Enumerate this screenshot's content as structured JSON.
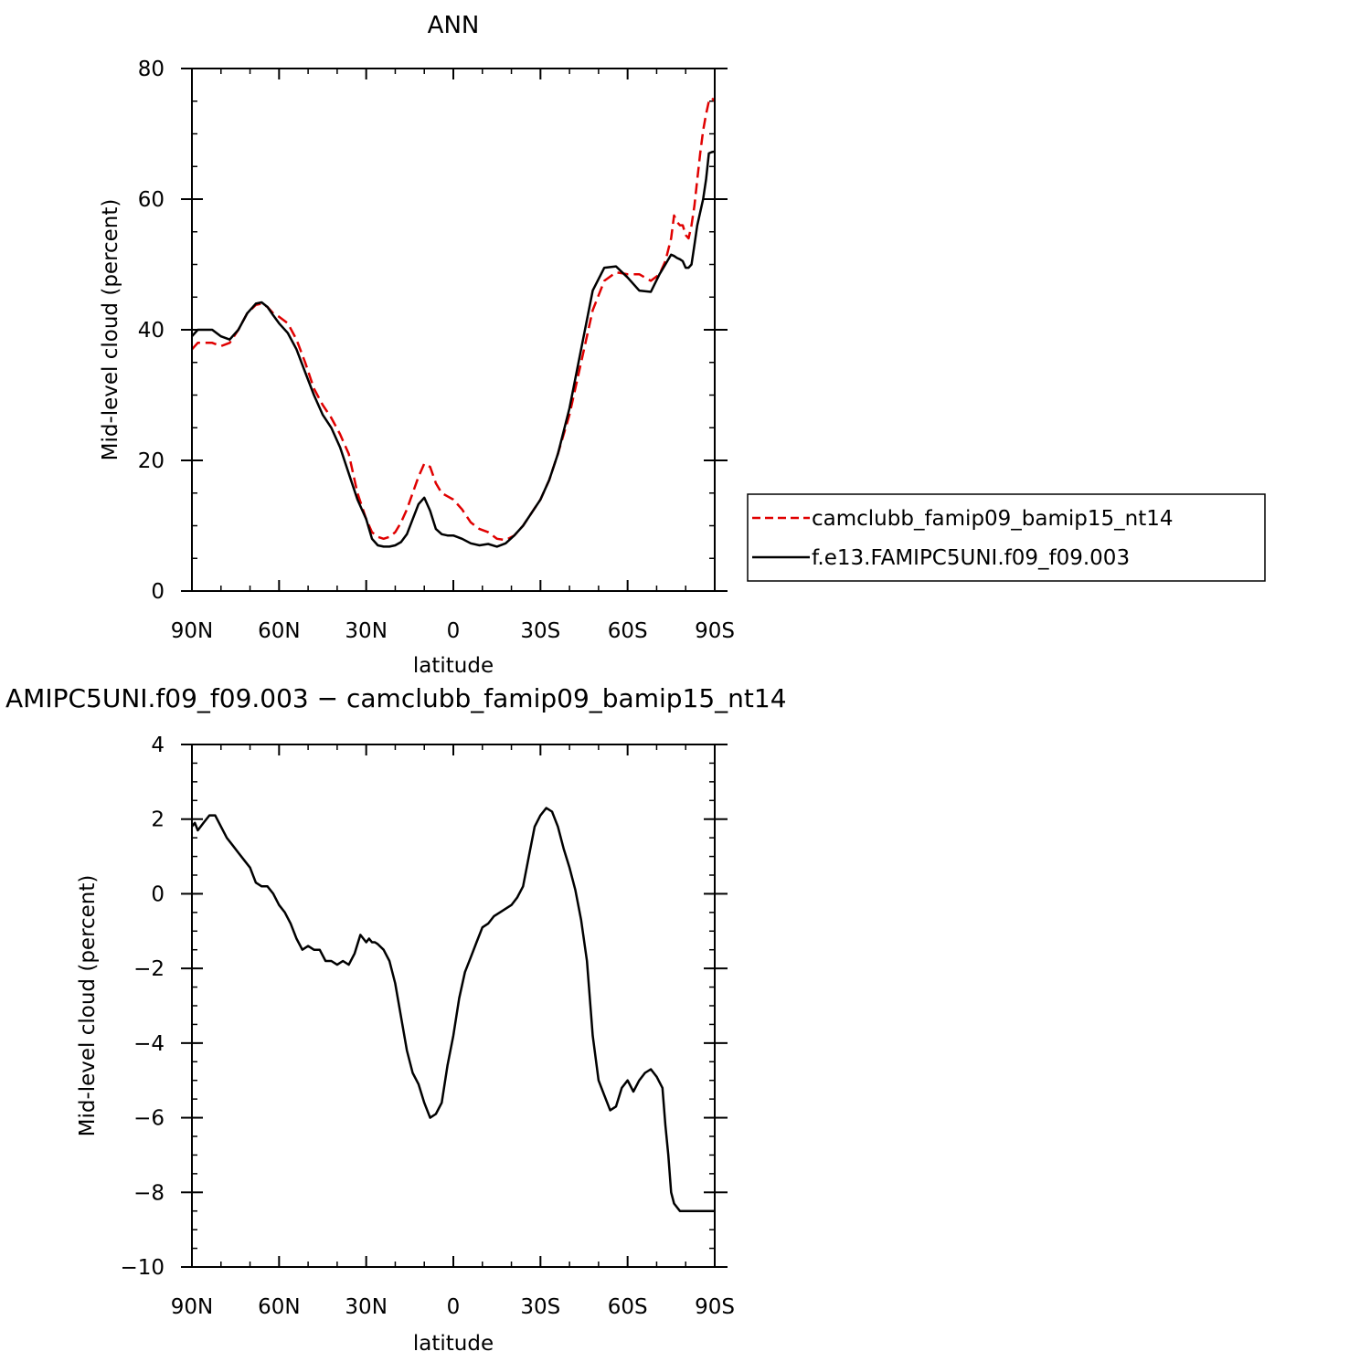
{
  "chart_data": [
    {
      "type": "line",
      "title": "ANN",
      "xlabel": "latitude",
      "ylabel": "Mid-level cloud (percent)",
      "xlim": [
        -90,
        90
      ],
      "ylim": [
        0,
        80
      ],
      "x_tick_values": [
        -90,
        -60,
        -30,
        0,
        30,
        60,
        90
      ],
      "x_tick_labels": [
        "90N",
        "60N",
        "30N",
        "0",
        "30S",
        "60S",
        "90S"
      ],
      "y_ticks": [
        0,
        20,
        40,
        60,
        80
      ],
      "legend": {
        "placement": "right",
        "entries": [
          {
            "label": "camclubb_famip09_bamip15_nt14",
            "color": "#e00000",
            "dash": "dashed"
          },
          {
            "label": "f.e13.FAMIPC5UNI.f09_f09.003",
            "color": "#000000",
            "dash": "solid"
          }
        ]
      },
      "series": [
        {
          "name": "camclubb_famip09_bamip15_nt14",
          "color": "#e00000",
          "dash": "dashed",
          "x": [
            -90,
            -88,
            -86,
            -83,
            -80,
            -77,
            -74,
            -71,
            -68,
            -66,
            -64,
            -62,
            -60,
            -57,
            -54,
            -51,
            -48,
            -45,
            -42,
            -39,
            -36,
            -33,
            -30,
            -28,
            -26,
            -24,
            -22,
            -20,
            -18,
            -16,
            -14,
            -12,
            -10,
            -8,
            -6,
            -4,
            -2,
            0,
            3,
            6,
            9,
            12,
            15,
            18,
            21,
            24,
            27,
            30,
            33,
            36,
            40,
            44,
            48,
            52,
            56,
            60,
            64,
            68,
            71,
            73,
            75,
            76,
            77,
            78,
            79,
            80,
            81,
            82,
            83,
            84,
            85,
            86,
            87,
            88,
            89,
            90
          ],
          "y": [
            37,
            38,
            38,
            38,
            37.5,
            38,
            40,
            42.5,
            43.8,
            44,
            43.5,
            42.5,
            42,
            41,
            38.5,
            35,
            31,
            28.5,
            26.5,
            24,
            21,
            15,
            11,
            9,
            8.3,
            8,
            8.3,
            9,
            10.5,
            12.5,
            15,
            17.5,
            19.5,
            19,
            16.5,
            15,
            14.5,
            14,
            12.5,
            10.5,
            9.5,
            9,
            8,
            7.8,
            8.5,
            10,
            12,
            14,
            17,
            21,
            27,
            35,
            43,
            47.5,
            48.8,
            48.5,
            48.5,
            47.5,
            48.5,
            50.5,
            54,
            57.5,
            56.5,
            56,
            56,
            54.5,
            54,
            56,
            59,
            63,
            67,
            70.5,
            73,
            75,
            75.5,
            75
          ]
        },
        {
          "name": "f.e13.FAMIPC5UNI.f09_f09.003",
          "color": "#000000",
          "dash": "solid",
          "x": [
            -90,
            -88,
            -86,
            -83,
            -80,
            -77,
            -74,
            -71,
            -68,
            -66,
            -64,
            -62,
            -60,
            -57,
            -54,
            -51,
            -48,
            -45,
            -42,
            -39,
            -36,
            -33,
            -30,
            -28,
            -26,
            -24,
            -22,
            -20,
            -18,
            -16,
            -14,
            -12,
            -10,
            -8,
            -6,
            -4,
            -2,
            0,
            3,
            6,
            9,
            12,
            15,
            18,
            21,
            24,
            27,
            30,
            33,
            36,
            40,
            44,
            48,
            52,
            56,
            60,
            64,
            68,
            71,
            73,
            75,
            76,
            77,
            78,
            79,
            80,
            81,
            82,
            83,
            84,
            85,
            86,
            87,
            88,
            89,
            90
          ],
          "y": [
            39,
            40,
            40,
            40,
            39,
            38.5,
            40,
            42.5,
            44,
            44.2,
            43.5,
            42.2,
            41,
            39.5,
            37,
            33.5,
            30,
            27,
            25,
            22,
            18,
            14,
            11,
            8,
            7,
            6.8,
            6.8,
            7,
            7.5,
            8.7,
            11,
            13.3,
            14.3,
            12.3,
            9.5,
            8.7,
            8.5,
            8.5,
            8,
            7.3,
            7,
            7.2,
            6.8,
            7.3,
            8.5,
            10,
            12,
            14,
            17,
            21,
            28,
            37,
            46,
            49.5,
            49.7,
            48,
            46,
            45.8,
            48.5,
            50,
            51.5,
            51.3,
            51,
            50.8,
            50.5,
            49.5,
            49.5,
            50,
            53,
            56,
            58,
            60,
            63,
            67,
            67.2,
            67.3
          ]
        }
      ]
    },
    {
      "type": "line",
      "title": "AMIPC5UNI.f09_f09.003 − camclubb_famip09_bamip15_nt14",
      "xlabel": "latitude",
      "ylabel": "Mid-level cloud (percent)",
      "xlim": [
        -90,
        90
      ],
      "ylim": [
        -10,
        4
      ],
      "x_tick_values": [
        -90,
        -60,
        -30,
        0,
        30,
        60,
        90
      ],
      "x_tick_labels": [
        "90N",
        "60N",
        "30N",
        "0",
        "30S",
        "60S",
        "90S"
      ],
      "y_ticks": [
        -10,
        -8,
        -6,
        -4,
        -2,
        0,
        2,
        4
      ],
      "series": [
        {
          "color": "#000000",
          "dash": "solid",
          "x": [
            -90,
            -89,
            -88,
            -86,
            -84,
            -82,
            -80,
            -78,
            -76,
            -74,
            -72,
            -70,
            -68,
            -66,
            -64,
            -62,
            -60,
            -58,
            -56,
            -54,
            -52,
            -50,
            -48,
            -46,
            -44,
            -42,
            -40,
            -38,
            -36,
            -34,
            -32,
            -30,
            -29,
            -28,
            -27,
            -26,
            -24,
            -22,
            -20,
            -18,
            -16,
            -14,
            -12,
            -10,
            -8,
            -6,
            -4,
            -2,
            0,
            2,
            4,
            6,
            8,
            10,
            12,
            14,
            16,
            18,
            20,
            22,
            24,
            26,
            28,
            30,
            32,
            34,
            36,
            38,
            40,
            42,
            44,
            46,
            48,
            50,
            52,
            54,
            56,
            58,
            60,
            62,
            64,
            66,
            68,
            70,
            72,
            73,
            74,
            75,
            76,
            77,
            78,
            79,
            80,
            81,
            82,
            83,
            84,
            85,
            86,
            87,
            88,
            89,
            90
          ],
          "y": [
            1.8,
            1.9,
            1.7,
            1.9,
            2.1,
            2.1,
            1.8,
            1.5,
            1.3,
            1.1,
            0.9,
            0.7,
            0.3,
            0.2,
            0.2,
            0.0,
            -0.3,
            -0.5,
            -0.8,
            -1.2,
            -1.5,
            -1.4,
            -1.5,
            -1.5,
            -1.8,
            -1.8,
            -1.9,
            -1.8,
            -1.9,
            -1.6,
            -1.1,
            -1.3,
            -1.2,
            -1.3,
            -1.3,
            -1.35,
            -1.5,
            -1.8,
            -2.4,
            -3.3,
            -4.2,
            -4.8,
            -5.1,
            -5.6,
            -6.0,
            -5.9,
            -5.6,
            -4.6,
            -3.8,
            -2.8,
            -2.1,
            -1.7,
            -1.3,
            -0.9,
            -0.8,
            -0.6,
            -0.5,
            -0.4,
            -0.3,
            -0.1,
            0.2,
            1.0,
            1.8,
            2.1,
            2.3,
            2.2,
            1.8,
            1.2,
            0.7,
            0.1,
            -0.7,
            -1.8,
            -3.8,
            -5.0,
            -5.4,
            -5.8,
            -5.7,
            -5.2,
            -5.0,
            -5.3,
            -5.0,
            -4.8,
            -4.7,
            -4.9,
            -5.2,
            -6.2,
            -7.0,
            -8.0,
            -8.3,
            -8.4,
            -8.5,
            -8.5,
            -8.5,
            -8.5,
            -8.5,
            -8.5,
            -8.5,
            -8.5,
            -8.5,
            -8.5,
            -8.5,
            -8.5,
            -8.5
          ]
        }
      ]
    }
  ]
}
